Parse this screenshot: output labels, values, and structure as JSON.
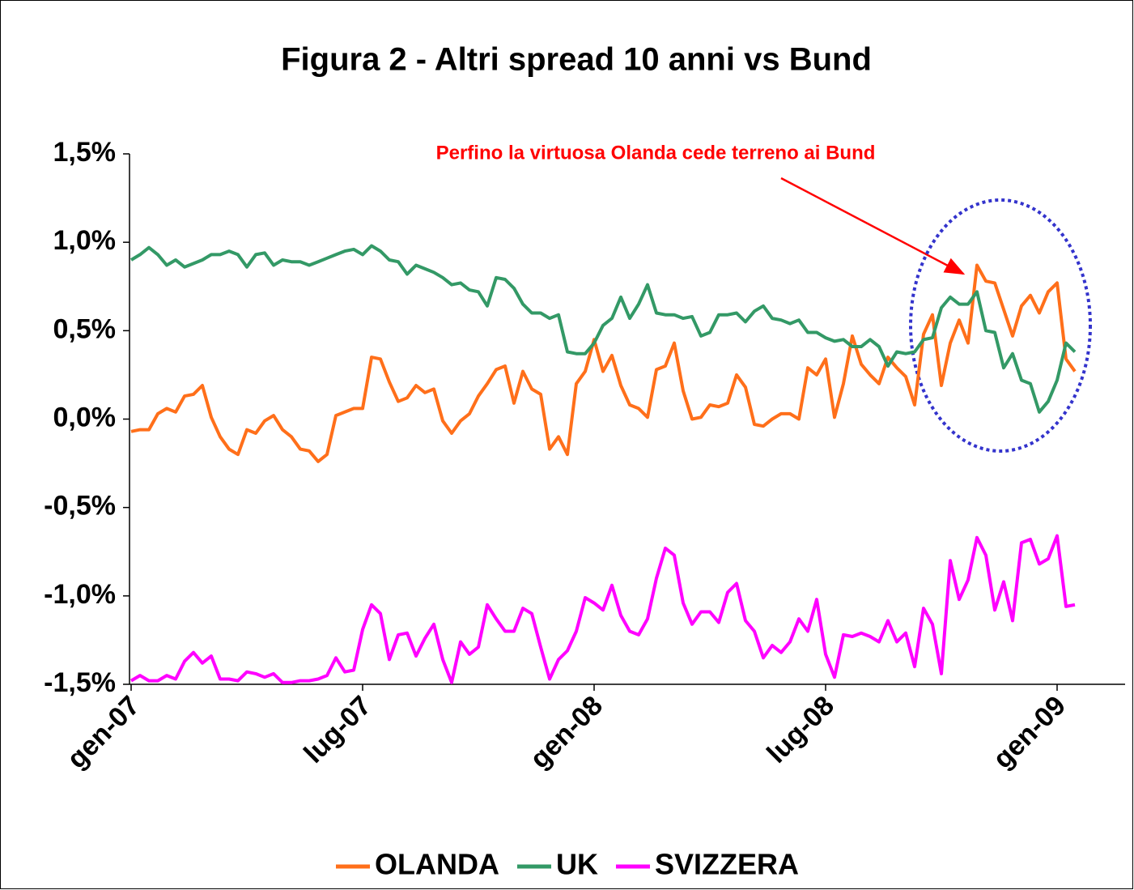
{
  "chart_data": {
    "type": "line",
    "title": "Figura 2 - Altri spread 10 anni vs Bund",
    "annotation": "Perfino la virtuosa Olanda cede terreno ai Bund",
    "categories": [
      "gen-07",
      null,
      null,
      null,
      null,
      null,
      null,
      null,
      null,
      null,
      null,
      null,
      null,
      null,
      null,
      null,
      null,
      null,
      null,
      null,
      null,
      null,
      null,
      null,
      null,
      null,
      "lug-07",
      null,
      null,
      null,
      null,
      null,
      null,
      null,
      null,
      null,
      null,
      null,
      null,
      null,
      null,
      null,
      null,
      null,
      null,
      null,
      null,
      null,
      null,
      null,
      null,
      null,
      "gen-08",
      null,
      null,
      null,
      null,
      null,
      null,
      null,
      null,
      null,
      null,
      null,
      null,
      null,
      null,
      null,
      null,
      null,
      null,
      null,
      null,
      null,
      null,
      null,
      null,
      null,
      "lug-08",
      null,
      null,
      null,
      null,
      null,
      null,
      null,
      null,
      null,
      null,
      null,
      null,
      null,
      null,
      null,
      null,
      null,
      null,
      null,
      null,
      null,
      null,
      null,
      null,
      null,
      "gen-09",
      null,
      null
    ],
    "series": [
      {
        "name": "OLANDA",
        "color": "#ff6f1a",
        "values": [
          -0.07,
          -0.06,
          -0.06,
          0.03,
          0.06,
          0.04,
          0.13,
          0.14,
          0.19,
          0.01,
          -0.1,
          -0.17,
          -0.2,
          -0.06,
          -0.08,
          -0.01,
          0.02,
          -0.06,
          -0.1,
          -0.17,
          -0.18,
          -0.24,
          -0.2,
          0.02,
          0.04,
          0.06,
          0.06,
          0.35,
          0.34,
          0.21,
          0.1,
          0.12,
          0.19,
          0.15,
          0.17,
          -0.01,
          -0.08,
          -0.01,
          0.03,
          0.13,
          0.2,
          0.28,
          0.3,
          0.09,
          0.27,
          0.17,
          0.14,
          -0.17,
          -0.1,
          -0.2,
          0.2,
          0.27,
          0.45,
          0.27,
          0.36,
          0.19,
          0.08,
          0.06,
          0.01,
          0.28,
          0.3,
          0.43,
          0.16,
          0.0,
          0.01,
          0.08,
          0.07,
          0.09,
          0.25,
          0.18,
          -0.03,
          -0.04,
          0.0,
          0.03,
          0.03,
          0.0,
          0.29,
          0.25,
          0.34,
          0.01,
          0.2,
          0.47,
          0.31,
          0.25,
          0.2,
          0.35,
          0.29,
          0.24,
          0.08,
          0.48,
          0.59,
          0.19,
          0.43,
          0.56,
          0.43,
          0.87,
          0.78,
          0.77,
          0.62,
          0.47,
          0.64,
          0.7,
          0.6,
          0.72,
          0.77,
          0.34,
          0.27
        ]
      },
      {
        "name": "UK",
        "color": "#339966",
        "values": [
          0.9,
          0.93,
          0.97,
          0.93,
          0.87,
          0.9,
          0.86,
          0.88,
          0.9,
          0.93,
          0.93,
          0.95,
          0.93,
          0.86,
          0.93,
          0.94,
          0.87,
          0.9,
          0.89,
          0.89,
          0.87,
          0.89,
          0.91,
          0.93,
          0.95,
          0.96,
          0.93,
          0.98,
          0.95,
          0.9,
          0.89,
          0.82,
          0.87,
          0.85,
          0.83,
          0.8,
          0.76,
          0.77,
          0.73,
          0.72,
          0.64,
          0.8,
          0.79,
          0.74,
          0.65,
          0.6,
          0.6,
          0.57,
          0.59,
          0.38,
          0.37,
          0.37,
          0.43,
          0.53,
          0.57,
          0.69,
          0.57,
          0.65,
          0.76,
          0.6,
          0.59,
          0.59,
          0.57,
          0.58,
          0.47,
          0.49,
          0.59,
          0.59,
          0.6,
          0.55,
          0.61,
          0.64,
          0.57,
          0.56,
          0.54,
          0.56,
          0.49,
          0.49,
          0.46,
          0.44,
          0.45,
          0.41,
          0.41,
          0.45,
          0.41,
          0.3,
          0.38,
          0.37,
          0.38,
          0.45,
          0.46,
          0.63,
          0.69,
          0.65,
          0.65,
          0.72,
          0.5,
          0.49,
          0.29,
          0.37,
          0.22,
          0.2,
          0.04,
          0.1,
          0.22,
          0.43,
          0.38
        ]
      },
      {
        "name": "SVIZZERA",
        "color": "#ff00ff",
        "values": [
          -1.48,
          -1.45,
          -1.48,
          -1.48,
          -1.45,
          -1.47,
          -1.37,
          -1.32,
          -1.38,
          -1.34,
          -1.47,
          -1.47,
          -1.48,
          -1.43,
          -1.44,
          -1.46,
          -1.44,
          -1.49,
          -1.49,
          -1.48,
          -1.48,
          -1.47,
          -1.45,
          -1.35,
          -1.43,
          -1.42,
          -1.19,
          -1.05,
          -1.1,
          -1.36,
          -1.22,
          -1.21,
          -1.34,
          -1.24,
          -1.16,
          -1.36,
          -1.49,
          -1.26,
          -1.33,
          -1.29,
          -1.05,
          -1.13,
          -1.2,
          -1.2,
          -1.07,
          -1.1,
          -1.29,
          -1.47,
          -1.36,
          -1.31,
          -1.2,
          -1.01,
          -1.04,
          -1.08,
          -0.94,
          -1.11,
          -1.2,
          -1.22,
          -1.13,
          -0.9,
          -0.73,
          -0.77,
          -1.04,
          -1.16,
          -1.09,
          -1.09,
          -1.15,
          -0.98,
          -0.93,
          -1.14,
          -1.2,
          -1.35,
          -1.28,
          -1.32,
          -1.26,
          -1.13,
          -1.2,
          -1.02,
          -1.33,
          -1.46,
          -1.22,
          -1.23,
          -1.21,
          -1.23,
          -1.26,
          -1.14,
          -1.26,
          -1.21,
          -1.4,
          -1.07,
          -1.16,
          -1.44,
          -0.8,
          -1.02,
          -0.91,
          -0.67,
          -0.77,
          -1.08,
          -0.92,
          -1.14,
          -0.7,
          -0.68,
          -0.82,
          -0.79,
          -0.66,
          -1.06,
          -1.05
        ]
      }
    ],
    "ylim": [
      -1.5,
      1.5
    ],
    "yticks": [
      {
        "value": -1.5,
        "label": "-1,5%"
      },
      {
        "value": -1.0,
        "label": "-1,0%"
      },
      {
        "value": -0.5,
        "label": "-0,5%"
      },
      {
        "value": 0,
        "label": "0,0%"
      },
      {
        "value": 0.5,
        "label": "0,5%"
      },
      {
        "value": 1.0,
        "label": "1,0%"
      },
      {
        "value": 1.5,
        "label": "1,5%"
      }
    ],
    "grid": false,
    "legend": "bottom"
  }
}
